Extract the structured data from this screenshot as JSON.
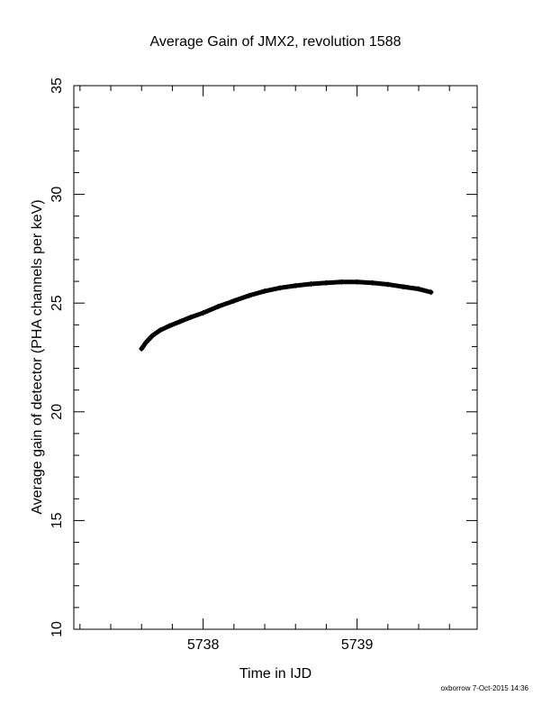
{
  "chart_data": {
    "type": "line",
    "title": "Average Gain of JMX2, revolution 1588",
    "x_label": "Time in IJD",
    "y_label": "Average gain of detector (PHA channels per keV)",
    "footer": "oxborrow  7-Oct-2015 14:36",
    "series": [
      {
        "name": "gain",
        "color": "#000000",
        "x": [
          5737.6,
          5737.63,
          5737.67,
          5737.72,
          5737.78,
          5737.85,
          5737.92,
          5738.0,
          5738.1,
          5738.2,
          5738.3,
          5738.4,
          5738.5,
          5738.6,
          5738.7,
          5738.8,
          5738.9,
          5739.0,
          5739.1,
          5739.2,
          5739.3,
          5739.4,
          5739.48
        ],
        "values": [
          22.9,
          23.2,
          23.5,
          23.75,
          23.95,
          24.15,
          24.35,
          24.55,
          24.85,
          25.1,
          25.35,
          25.55,
          25.7,
          25.8,
          25.88,
          25.93,
          25.97,
          25.97,
          25.93,
          25.86,
          25.75,
          25.65,
          25.5
        ]
      }
    ],
    "xlim": [
      5737.16,
      5739.78
    ],
    "ylim": [
      10,
      35
    ],
    "xticks": [
      5738,
      5739
    ],
    "yticks": [
      10,
      15,
      20,
      25,
      30,
      35
    ],
    "x_minor_ticks": [
      5737.2,
      5737.4,
      5737.6,
      5737.8,
      5738.2,
      5738.4,
      5738.6,
      5738.8,
      5739.2,
      5739.4,
      5739.6
    ],
    "y_minor_ticks": [
      11,
      12,
      13,
      14,
      16,
      17,
      18,
      19,
      21,
      22,
      23,
      24,
      26,
      27,
      28,
      29,
      31,
      32,
      33,
      34
    ]
  }
}
